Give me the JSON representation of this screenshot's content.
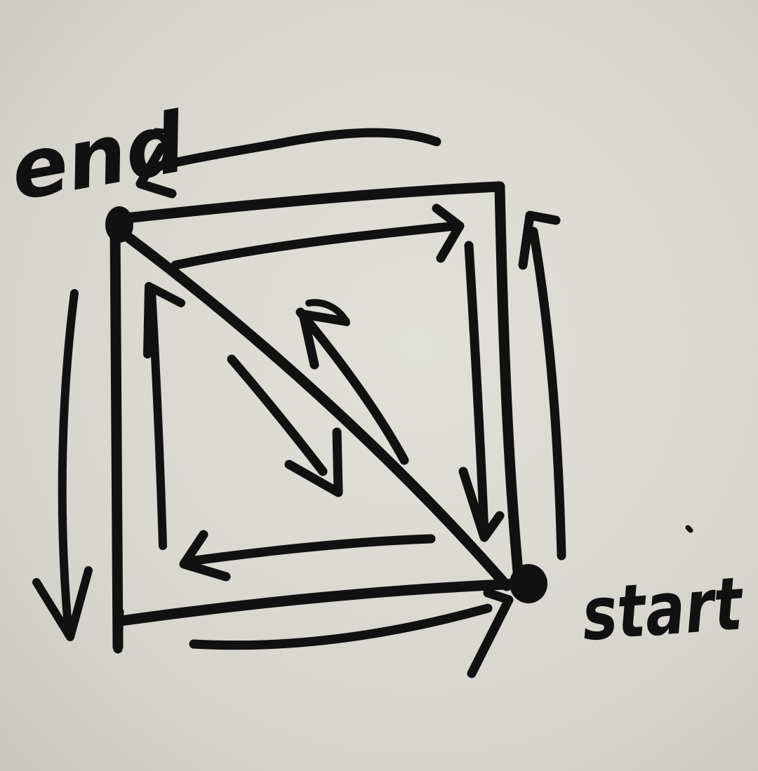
{
  "diagram": {
    "start_label": "start",
    "end_label": "end",
    "ink_color": "#111111",
    "paper_color": "#d9d8d1"
  }
}
